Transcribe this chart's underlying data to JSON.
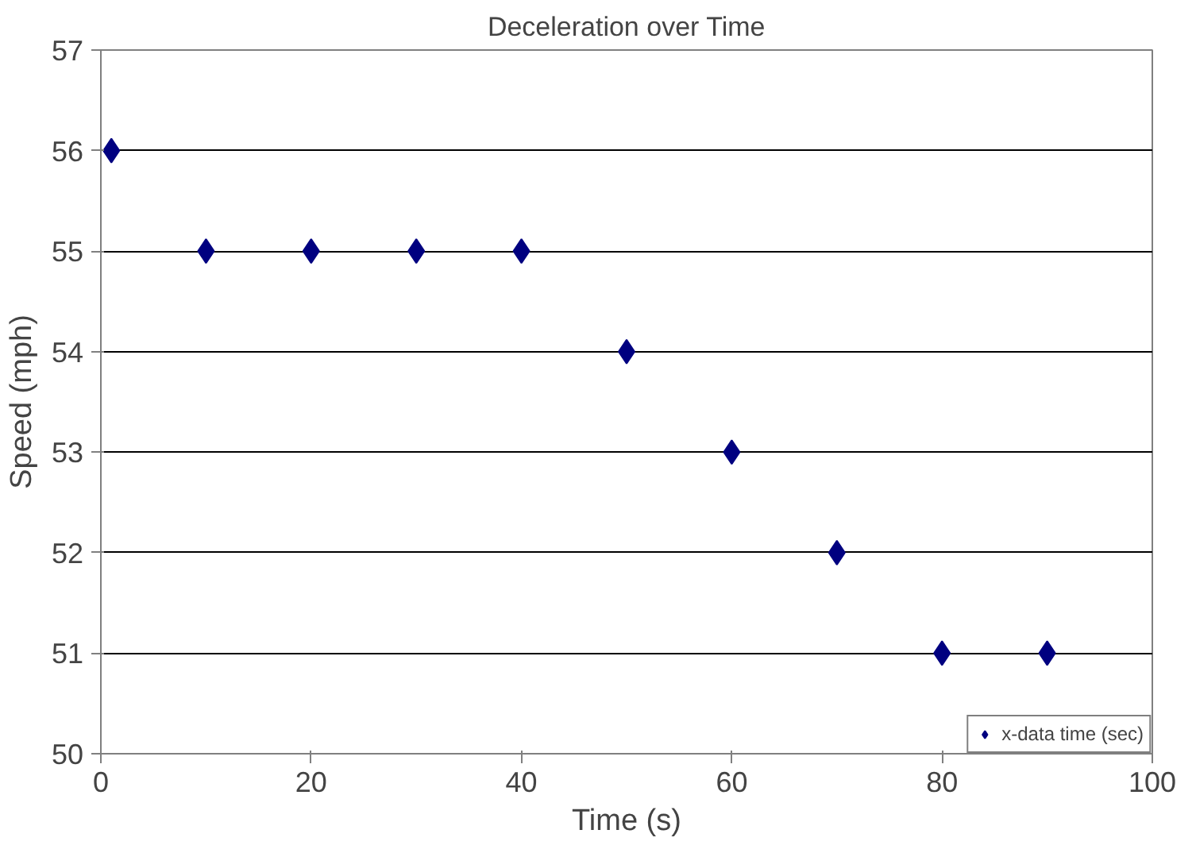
{
  "chart_data": {
    "type": "scatter",
    "title": "Deceleration over Time",
    "xlabel": "Time (s)",
    "ylabel": "Speed (mph)",
    "x": [
      1,
      10,
      20,
      30,
      40,
      50,
      60,
      70,
      80,
      90
    ],
    "series": [
      {
        "name": "x-data time (sec)",
        "color": "#000080",
        "values": [
          56,
          55,
          55,
          55,
          55,
          54,
          53,
          52,
          51,
          51
        ]
      }
    ],
    "xlim": [
      0,
      100
    ],
    "xticks": [
      0,
      20,
      40,
      60,
      80,
      100
    ],
    "ylim": [
      50,
      57
    ],
    "yticks": [
      50,
      51,
      52,
      53,
      54,
      55,
      56,
      57
    ],
    "grid": "y",
    "legend": "bottom right",
    "marker": "diamond"
  }
}
